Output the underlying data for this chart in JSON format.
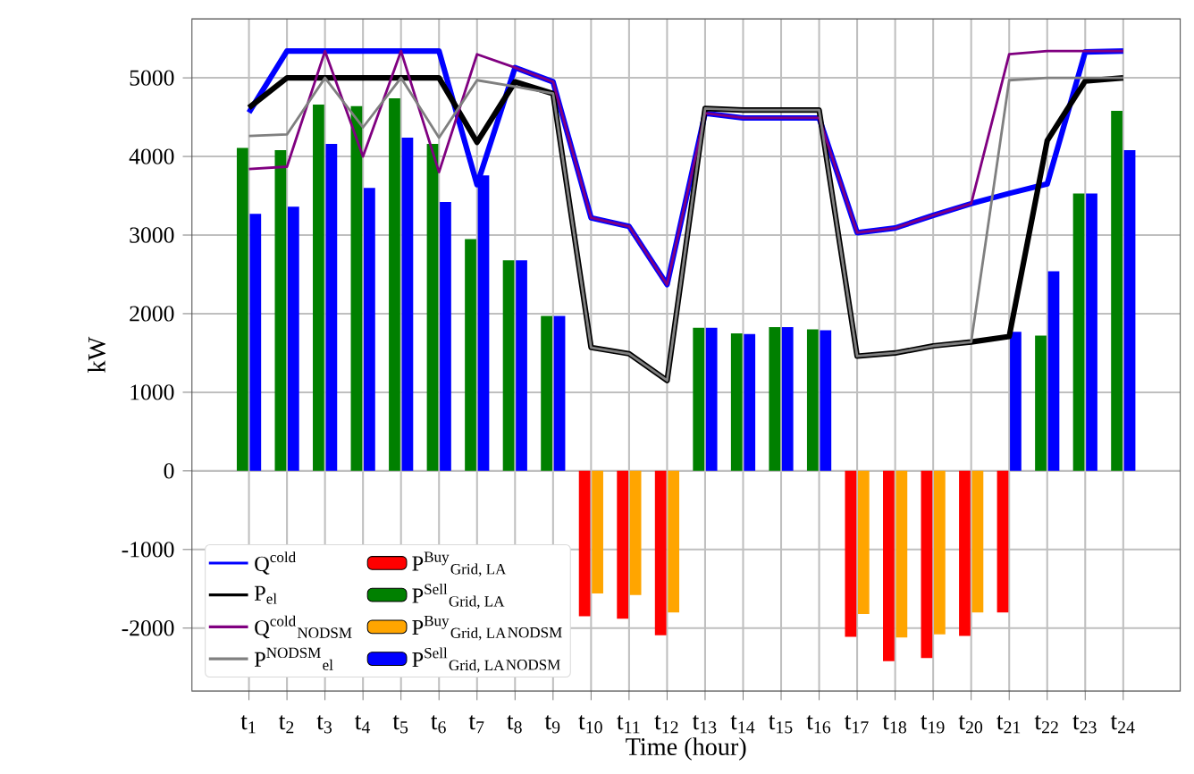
{
  "chart_data": {
    "type": "bar",
    "xlabel": "Time (hour)",
    "ylabel": "kW",
    "categories": [
      "t$_{1}$",
      "t$_{2}$",
      "t$_{3}$",
      "t$_{4}$",
      "t$_{5}$",
      "t$_{6}$",
      "t$_{7}$",
      "t$_{8}$",
      "t$_{9}$",
      "t$_{10}$",
      "t$_{11}$",
      "t$_{12}$",
      "t$_{13}$",
      "t$_{14}$",
      "t$_{15}$",
      "t$_{16}$",
      "t$_{17}$",
      "t$_{18}$",
      "t$_{19}$",
      "t$_{20}$",
      "t$_{21}$",
      "t$_{22}$",
      "t$_{23}$",
      "t$_{24}$"
    ],
    "ylim": [
      -2800,
      5750
    ],
    "yticks": [
      -2000,
      -1000,
      0,
      1000,
      2000,
      3000,
      4000,
      5000
    ],
    "grid": true,
    "legend": "bottom left",
    "marker": "none",
    "line_style": "solid",
    "series": [
      {
        "name": "Q$^{cold}$",
        "type": "line",
        "color": "#0000ff",
        "values": [
          4560,
          5340,
          5340,
          5340,
          5340,
          5340,
          3640,
          5130,
          4950,
          3220,
          3110,
          2370,
          4550,
          4490,
          4490,
          4490,
          3030,
          3090,
          3250,
          3400,
          3530,
          3650,
          5330,
          5340
        ]
      },
      {
        "name": "P$_{el}$",
        "type": "line",
        "color": "#000000",
        "values": [
          4620,
          5000,
          5000,
          5000,
          5000,
          5000,
          4180,
          4950,
          4800,
          1570,
          1490,
          1150,
          4610,
          4590,
          4590,
          4590,
          1460,
          1500,
          1590,
          1640,
          1710,
          4200,
          4960,
          5000
        ]
      },
      {
        "name": "Q$^{cold}$$_{NODSM}$",
        "type": "line",
        "color": "#800080",
        "values": [
          3840,
          3870,
          5340,
          4000,
          5340,
          3800,
          5300,
          5130,
          4950,
          3220,
          3110,
          2370,
          4550,
          4490,
          4490,
          4490,
          3030,
          3090,
          3250,
          3400,
          5300,
          5340,
          5340,
          5340
        ]
      },
      {
        "name": "P$^{NODSM}$$_{el}$",
        "type": "line",
        "color": "#808080",
        "values": [
          4260,
          4280,
          5000,
          4370,
          5000,
          4240,
          4970,
          4890,
          4800,
          1570,
          1490,
          1150,
          4610,
          4590,
          4590,
          4590,
          1460,
          1500,
          1590,
          1640,
          4970,
          5000,
          5000,
          5000
        ]
      },
      {
        "name": "P$^{Buy}$$_{Grid, LA}$",
        "color": "#ff0000",
        "values": [
          null,
          null,
          null,
          null,
          null,
          null,
          null,
          null,
          null,
          -1850,
          -1880,
          -2090,
          null,
          null,
          null,
          null,
          -2110,
          -2420,
          -2380,
          -2100,
          -1800,
          null,
          null,
          null
        ]
      },
      {
        "name": "P$^{Sell}$$_{Grid, LA}$",
        "color": "#008000",
        "values": [
          4110,
          4080,
          4660,
          4640,
          4740,
          4160,
          2950,
          2680,
          1970,
          null,
          null,
          null,
          1820,
          1750,
          1830,
          1800,
          null,
          null,
          null,
          null,
          null,
          1720,
          3530,
          4580
        ]
      },
      {
        "name": "P$^{Buy}$$_{Grid, LA}$$_{NODSM}$",
        "color": "#ffa500",
        "values": [
          null,
          null,
          null,
          null,
          null,
          null,
          null,
          null,
          null,
          -1560,
          -1580,
          -1800,
          null,
          null,
          null,
          null,
          -1820,
          -2120,
          -2080,
          -1800,
          null,
          null,
          null,
          null
        ]
      },
      {
        "name": "P$^{Sell}$$_{Grid, LA}$$_{NODSM}$",
        "color": "#0000ff",
        "values": [
          3270,
          3360,
          4160,
          3600,
          4240,
          3420,
          3760,
          2680,
          1970,
          null,
          null,
          null,
          1820,
          1740,
          1830,
          1790,
          null,
          null,
          null,
          null,
          1770,
          2540,
          3530,
          4080
        ]
      }
    ]
  }
}
